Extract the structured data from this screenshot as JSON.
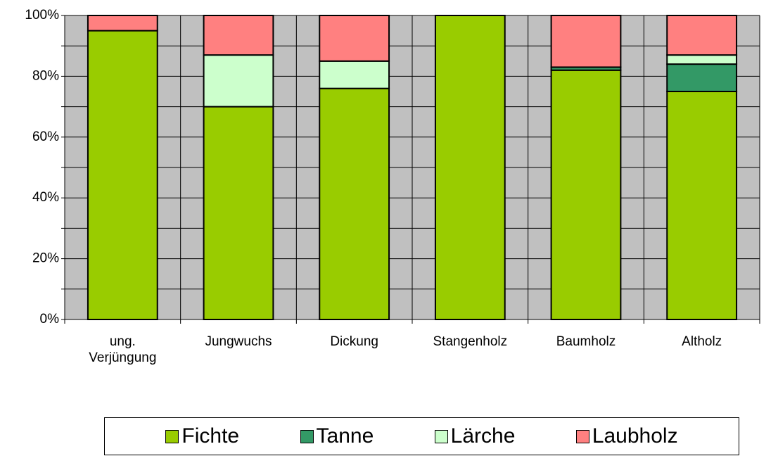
{
  "chart_data": {
    "type": "bar",
    "stacked": true,
    "categories": [
      "ung. Verjüngung",
      "Jungwuchs",
      "Dickung",
      "Stangenholz",
      "Baumholz",
      "Altholz"
    ],
    "series": [
      {
        "name": "Fichte",
        "color": "#99cc00",
        "values": [
          95,
          70,
          76,
          100,
          82,
          75
        ]
      },
      {
        "name": "Tanne",
        "color": "#339966",
        "values": [
          0,
          0,
          0,
          0,
          1,
          9
        ]
      },
      {
        "name": "Lärche",
        "color": "#ccffcc",
        "values": [
          0,
          17,
          9,
          0,
          0,
          3
        ]
      },
      {
        "name": "Laubholz",
        "color": "#ff8080",
        "values": [
          5,
          13,
          15,
          0,
          17,
          13
        ]
      }
    ],
    "ylim": [
      0,
      100
    ],
    "yticks": [
      {
        "value": 0,
        "label": "0%"
      },
      {
        "value": 20,
        "label": "20%"
      },
      {
        "value": 40,
        "label": "40%"
      },
      {
        "value": 60,
        "label": "60%"
      },
      {
        "value": 80,
        "label": "80%"
      },
      {
        "value": 100,
        "label": "100%"
      }
    ],
    "minor_yticks": [
      10,
      30,
      50,
      70,
      90
    ],
    "grid": true,
    "xgrid": true,
    "plot_background": "#c0c0c0",
    "legend": "bottom"
  }
}
